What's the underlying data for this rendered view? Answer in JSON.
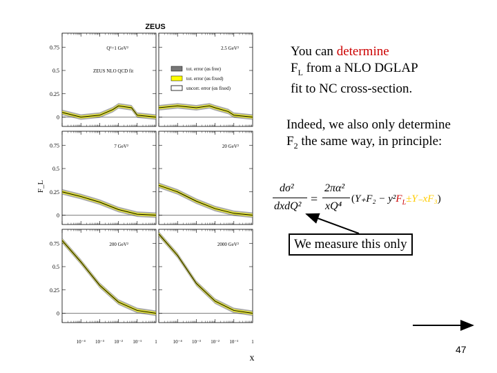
{
  "slide": {
    "text1": {
      "line1_prefix": "You can ",
      "line1_highlight": "determine",
      "line2": "F",
      "line2_sub": "L",
      "line2_rest": " from a NLO DGLAP",
      "line3": "fit to NC cross-section."
    },
    "text2": {
      "line1": "Indeed, we also only determine",
      "line2": "F",
      "line2_sub": "2",
      "line2_rest": " the same way, in principle:"
    },
    "boxed_note": "We measure this only",
    "page_number": "47",
    "colors": {
      "highlight": "#cc0000",
      "band_yellow": "#ffff00",
      "band_hatch": "#444444"
    },
    "formula": {
      "lhs_num": "dσ²",
      "lhs_den": "dxdQ²",
      "eq": "=",
      "rhs_num": "2πα²",
      "rhs_den": "xQ⁴",
      "paren_open": "(",
      "Yplus": "Y₊F₂",
      "minus": " − y²",
      "FL": "F",
      "FL_sub": "L",
      "pm": "±Y₋xF₃",
      "paren_close": ")"
    }
  },
  "chart_data": {
    "type": "line",
    "title": "ZEUS",
    "xlabel": "x",
    "ylabel": "F_L",
    "x_scale": "log",
    "x_range": [
      1e-05,
      1
    ],
    "x_ticks": [
      "10⁻⁴",
      "10⁻³",
      "10⁻²",
      "10⁻¹",
      "1"
    ],
    "y_ticks": [
      "0",
      "0.25",
      "0.5",
      "0.75"
    ],
    "ylim": [
      -0.1,
      0.9
    ],
    "legend": {
      "title": "ZEUS NLO QCD fit",
      "entries": [
        "tot. error (αs free)",
        "tot. error (αs fixed)",
        "uncorr. error (αs fixed)"
      ],
      "placement": "top-right panel 1"
    },
    "panels": [
      {
        "label": "Q²=1 GeV²",
        "x": [
          1e-05,
          0.0001,
          0.001,
          0.005,
          0.01,
          0.05,
          0.1,
          1
        ],
        "y": [
          0.05,
          0.0,
          0.02,
          0.08,
          0.12,
          0.1,
          0.02,
          0.0
        ]
      },
      {
        "label": "2.5 GeV²",
        "x": [
          1e-05,
          0.0001,
          0.001,
          0.005,
          0.01,
          0.05,
          0.1,
          1
        ],
        "y": [
          0.1,
          0.12,
          0.1,
          0.12,
          0.1,
          0.06,
          0.02,
          0.0
        ]
      },
      {
        "label": "7 GeV²",
        "x": [
          1e-05,
          0.0001,
          0.001,
          0.01,
          0.1,
          1
        ],
        "y": [
          0.25,
          0.2,
          0.14,
          0.06,
          0.01,
          0.0
        ]
      },
      {
        "label": "20 GeV²",
        "x": [
          1e-05,
          0.0001,
          0.001,
          0.01,
          0.1,
          1
        ],
        "y": [
          0.32,
          0.25,
          0.15,
          0.07,
          0.02,
          0.0
        ]
      },
      {
        "label": "200 GeV²",
        "x": [
          1e-05,
          0.0001,
          0.001,
          0.01,
          0.1,
          1
        ],
        "y": [
          0.78,
          0.55,
          0.3,
          0.12,
          0.03,
          0.0
        ]
      },
      {
        "label": "2000 GeV²",
        "x": [
          1e-05,
          0.0001,
          0.001,
          0.01,
          0.1,
          1
        ],
        "y": [
          0.85,
          0.62,
          0.32,
          0.13,
          0.03,
          0.0
        ]
      }
    ]
  }
}
